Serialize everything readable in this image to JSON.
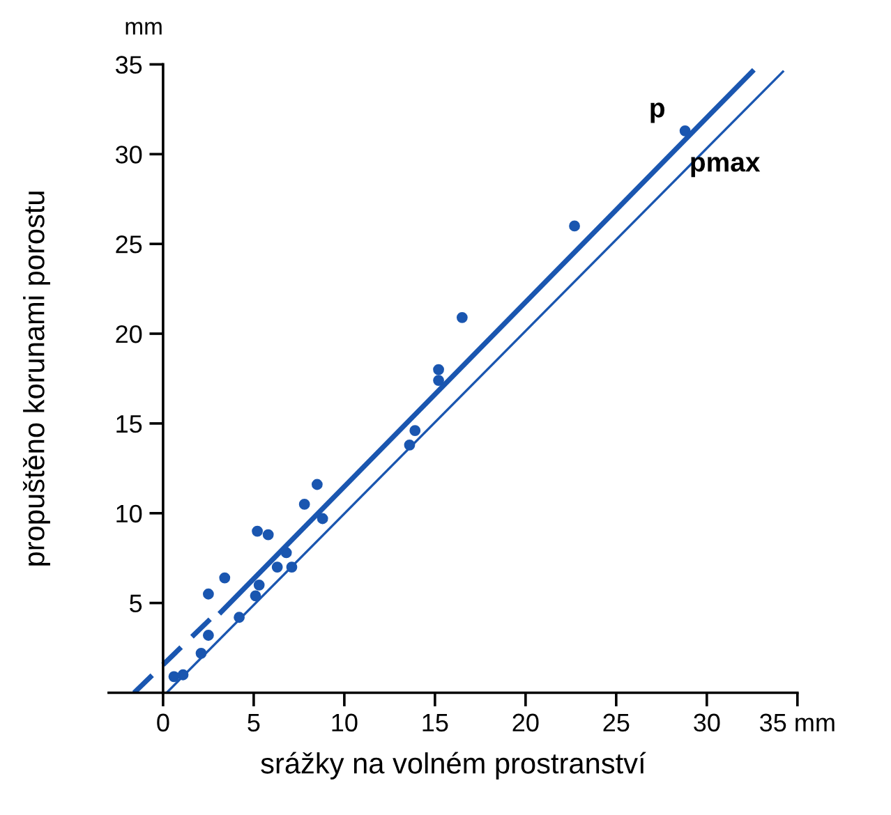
{
  "chart_data": {
    "type": "scatter",
    "xlabel": "srážky na volném prostranství",
    "ylabel": "propuštěno korunami porostu",
    "xlim": [
      -3,
      35
    ],
    "ylim": [
      0,
      35
    ],
    "xticks": [
      0,
      5,
      10,
      15,
      20,
      25,
      30,
      {
        "value": 35,
        "label": "35 mm"
      }
    ],
    "yticks": [
      5,
      10,
      15,
      20,
      25,
      30,
      35
    ],
    "grid": false,
    "x": [
      0.6,
      1.1,
      2.1,
      2.5,
      2.5,
      3.4,
      4.2,
      5.1,
      5.3,
      5.2,
      5.8,
      6.3,
      6.8,
      7.1,
      7.8,
      8.5,
      8.8,
      13.6,
      13.9,
      15.2,
      15.2,
      16.5,
      22.7,
      28.8
    ],
    "series": [
      {
        "color": "#1a56b0",
        "marker": "circle",
        "values": [
          0.9,
          1.0,
          2.2,
          3.2,
          5.5,
          6.4,
          4.2,
          5.4,
          6.0,
          9.0,
          8.8,
          7.0,
          7.8,
          7.0,
          10.5,
          11.6,
          9.7,
          13.8,
          14.6,
          18.0,
          17.4,
          20.9,
          26.0,
          31.3
        ]
      },
      {
        "type": "line",
        "color": "#1a56b0",
        "marker": "none",
        "line_style": "dashed",
        "x": [
          -1.6,
          2.6
        ],
        "values": [
          0,
          4.1
        ]
      },
      {
        "type": "line",
        "name": "p",
        "color": "#1a56b0",
        "marker": "none",
        "line_style": "solid",
        "x": [
          3.2,
          32.5
        ],
        "values": [
          4.5,
          34.6
        ]
      },
      {
        "type": "line",
        "name": "pmax",
        "color": "#1a56b0",
        "marker": "none",
        "line_style": "solid",
        "x": [
          0.2,
          34.2
        ],
        "values": [
          0,
          34.6
        ]
      }
    ],
    "annotations": [
      "mm"
    ]
  }
}
